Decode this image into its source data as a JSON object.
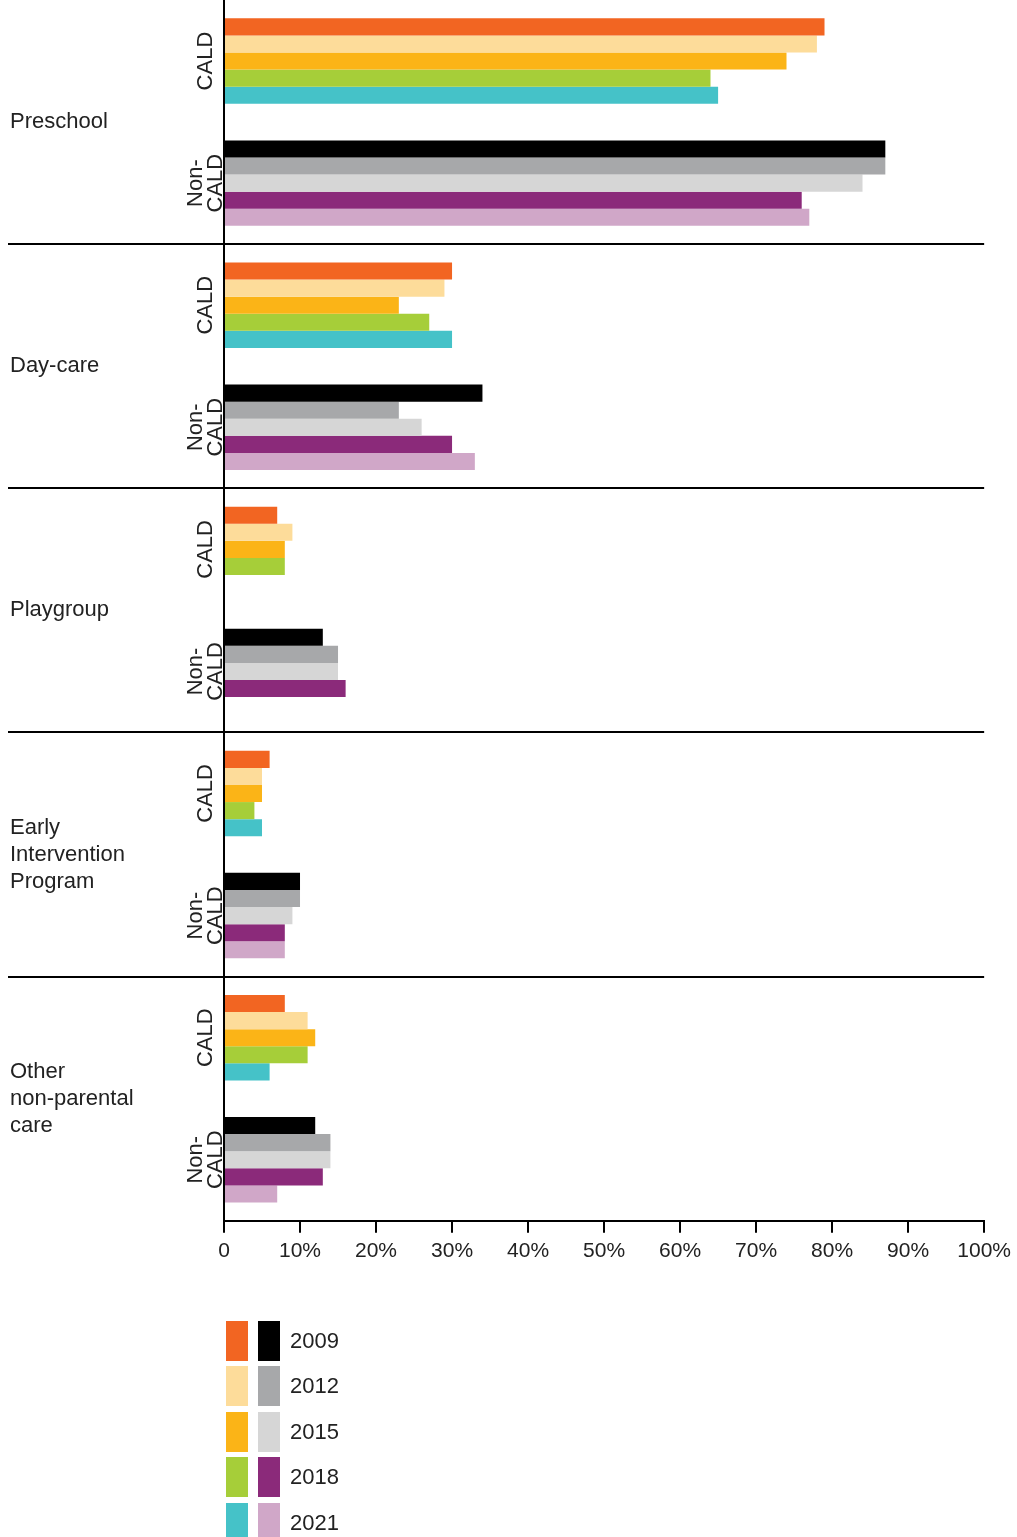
{
  "chart_data": {
    "type": "bar",
    "orientation": "horizontal",
    "categories": [
      "CALD",
      "Non-CALD",
      "CALD",
      "Non-CALD",
      "CALD",
      "Non-CALD",
      "CALD",
      "Non-CALD",
      "CALD",
      "Non-CALD"
    ],
    "series": [
      {
        "name": "2009",
        "colors": [
          "#f26522",
          "#000000",
          "#f26522",
          "#000000",
          "#f26522",
          "#000000",
          "#f26522",
          "#000000",
          "#f26522",
          "#000000"
        ],
        "values": [
          79,
          87,
          30,
          34,
          7,
          13,
          6,
          10,
          8,
          12
        ]
      },
      {
        "name": "2012",
        "colors": [
          "#fddc9a",
          "#a7a8aa",
          "#fddc9a",
          "#a7a8aa",
          "#fddc9a",
          "#a7a8aa",
          "#fddc9a",
          "#a7a8aa",
          "#fddc9a",
          "#a7a8aa"
        ],
        "values": [
          78,
          87,
          29,
          23,
          9,
          15,
          5,
          10,
          11,
          14
        ]
      },
      {
        "name": "2015",
        "colors": [
          "#fbb417",
          "#d6d6d6",
          "#fbb417",
          "#d6d6d6",
          "#fbb417",
          "#d6d6d6",
          "#fbb417",
          "#d6d6d6",
          "#fbb417",
          "#d6d6d6"
        ],
        "values": [
          74,
          84,
          23,
          26,
          8,
          15,
          5,
          9,
          12,
          14
        ]
      },
      {
        "name": "2018",
        "colors": [
          "#a6ce39",
          "#8b2a7a",
          "#a6ce39",
          "#8b2a7a",
          "#a6ce39",
          "#8b2a7a",
          "#a6ce39",
          "#8b2a7a",
          "#a6ce39",
          "#8b2a7a"
        ],
        "values": [
          64,
          76,
          27,
          30,
          8,
          16,
          4,
          8,
          11,
          13
        ]
      },
      {
        "name": "2021",
        "colors": [
          "#45c2c8",
          "#d0a7c8",
          "#45c2c8",
          "#d0a7c8",
          "#45c2c8",
          "#d0a7c8",
          "#45c2c8",
          "#d0a7c8",
          "#45c2c8",
          "#d0a7c8"
        ],
        "values": [
          65,
          77,
          30,
          33,
          null,
          null,
          5,
          8,
          6,
          7
        ]
      }
    ],
    "xlim": [
      0,
      100
    ],
    "xticks": [
      {
        "value": 0,
        "label": "0"
      },
      {
        "value": 10,
        "label": "10%"
      },
      {
        "value": 20,
        "label": "20%"
      },
      {
        "value": 30,
        "label": "30%"
      },
      {
        "value": 40,
        "label": "40%"
      },
      {
        "value": 50,
        "label": "50%"
      },
      {
        "value": 60,
        "label": "60%"
      },
      {
        "value": 70,
        "label": "70%"
      },
      {
        "value": 80,
        "label": "80%"
      },
      {
        "value": 90,
        "label": "90%"
      },
      {
        "value": 100,
        "label": "100%"
      }
    ],
    "annotations": [
      "Preschool",
      "Day-care",
      "Playgroup",
      "Early Intervention Program",
      "Other non-parental care"
    ],
    "legend": "bottom"
  }
}
